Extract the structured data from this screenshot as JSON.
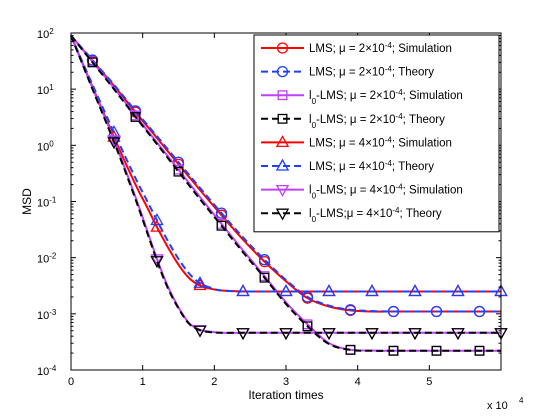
{
  "chart_data": {
    "type": "line",
    "title": "",
    "xlabel": "Iteration times",
    "ylabel": "MSD",
    "x_multiplier_label": "x 10",
    "x_multiplier_exp": "4",
    "xlim": [
      0,
      60000
    ],
    "ylim": [
      0.0001,
      100
    ],
    "yscale": "log",
    "grid": false,
    "legend_position": "top-right",
    "x_ticks": [
      {
        "value": 0,
        "label": "0"
      },
      {
        "value": 10000,
        "label": "1"
      },
      {
        "value": 20000,
        "label": "2"
      },
      {
        "value": 30000,
        "label": "3"
      },
      {
        "value": 40000,
        "label": "4"
      },
      {
        "value": 50000,
        "label": "5"
      }
    ],
    "y_ticks": [
      {
        "value": 0.0001,
        "base": "10",
        "exp": "-4"
      },
      {
        "value": 0.001,
        "base": "10",
        "exp": "-3"
      },
      {
        "value": 0.01,
        "base": "10",
        "exp": "-2"
      },
      {
        "value": 0.1,
        "base": "10",
        "exp": "-1"
      },
      {
        "value": 1,
        "base": "10",
        "exp": "0"
      },
      {
        "value": 10,
        "base": "10",
        "exp": "1"
      },
      {
        "value": 100,
        "base": "10",
        "exp": "2"
      }
    ],
    "series": [
      {
        "name": "LMS; μ = 2×10⁻⁴; Simulation",
        "legend_parts": [
          "LMS; ",
          "μ",
          " = 2×10",
          "-4",
          "; Simulation"
        ],
        "color": "#ff0000",
        "dash": "solid",
        "marker": "circle",
        "x": [
          0,
          3000,
          6000,
          9000,
          12000,
          15000,
          18000,
          21000,
          24000,
          27000,
          30000,
          33000,
          36000,
          39000,
          42000,
          45000,
          48000,
          51000,
          54000,
          57000,
          60000
        ],
        "y": [
          90,
          32,
          11.5,
          3.9,
          1.35,
          0.46,
          0.16,
          0.057,
          0.021,
          0.0085,
          0.0038,
          0.0019,
          0.00135,
          0.00115,
          0.0011,
          0.0011,
          0.0011,
          0.0011,
          0.0011,
          0.0011,
          0.0011
        ],
        "marker_x": [
          3000,
          9000,
          15000,
          21000,
          27000,
          33000,
          39000,
          45000,
          51000,
          57000
        ]
      },
      {
        "name": "LMS; μ = 2×10⁻⁴; Theory",
        "legend_parts": [
          "LMS; ",
          "μ",
          " = 2×10",
          "-4",
          "; Theory"
        ],
        "color": "#1f3fff",
        "dash": "dashed",
        "marker": "circle",
        "x": [
          0,
          3000,
          6000,
          9000,
          12000,
          15000,
          18000,
          21000,
          24000,
          27000,
          30000,
          33000,
          36000,
          39000,
          42000,
          45000,
          48000,
          51000,
          54000,
          57000,
          60000
        ],
        "y": [
          90,
          33,
          12,
          4.1,
          1.45,
          0.5,
          0.175,
          0.062,
          0.023,
          0.0092,
          0.004,
          0.002,
          0.0014,
          0.00118,
          0.00112,
          0.0011,
          0.0011,
          0.0011,
          0.0011,
          0.0011,
          0.0011
        ],
        "marker_x": [
          3000,
          9000,
          15000,
          21000,
          27000,
          33000,
          39000,
          45000,
          51000,
          57000
        ]
      },
      {
        "name": "l₀-LMS; μ = 2×10⁻⁴; Simulation",
        "legend_parts": [
          "l",
          "0",
          "-LMS; ",
          "μ",
          " = 2×10",
          "-4",
          "; Simulation"
        ],
        "color": "#c040ff",
        "dash": "solid",
        "marker": "square",
        "x": [
          0,
          3000,
          6000,
          9000,
          12000,
          15000,
          18000,
          21000,
          24000,
          27000,
          30000,
          33000,
          36000,
          39000,
          42000,
          45000,
          48000,
          51000,
          54000,
          57000,
          60000
        ],
        "y": [
          90,
          31,
          10.5,
          3.4,
          1.12,
          0.37,
          0.12,
          0.04,
          0.0135,
          0.0047,
          0.0016,
          0.00065,
          0.0003,
          0.00023,
          0.000222,
          0.00022,
          0.00022,
          0.00022,
          0.00022,
          0.00022,
          0.00022
        ],
        "marker_x": [
          3000,
          9000,
          15000,
          21000,
          27000,
          33000,
          39000,
          45000,
          51000,
          57000
        ]
      },
      {
        "name": "l₀-LMS; μ = 2×10⁻⁴; Theory",
        "legend_parts": [
          "l",
          "0",
          "-LMS; ",
          "μ",
          " = 2×10",
          "-4",
          "; Theory"
        ],
        "color": "#000000",
        "dash": "dashed",
        "marker": "square",
        "x": [
          0,
          3000,
          6000,
          9000,
          12000,
          15000,
          18000,
          21000,
          24000,
          27000,
          30000,
          33000,
          36000,
          39000,
          42000,
          45000,
          48000,
          51000,
          54000,
          57000,
          60000
        ],
        "y": [
          90,
          30,
          10,
          3.2,
          1.05,
          0.34,
          0.11,
          0.037,
          0.0125,
          0.0044,
          0.0015,
          0.0006,
          0.00029,
          0.000228,
          0.00022,
          0.00022,
          0.00022,
          0.00022,
          0.00022,
          0.00022,
          0.00022
        ],
        "marker_x": [
          3000,
          9000,
          15000,
          21000,
          27000,
          33000,
          39000,
          45000,
          51000,
          57000
        ]
      },
      {
        "name": "LMS; μ = 4×10⁻⁴; Simulation",
        "legend_parts": [
          "LMS; ",
          "μ",
          " = 4×10",
          "-4",
          "; Simulation"
        ],
        "color": "#ff0000",
        "dash": "solid",
        "marker": "triangle-up",
        "x": [
          0,
          3000,
          6000,
          9000,
          10500,
          12000,
          13500,
          15000,
          16500,
          18000,
          19500,
          21000,
          24000,
          27000,
          30000,
          36000,
          42000,
          48000,
          54000,
          60000
        ],
        "y": [
          90,
          11,
          1.4,
          0.2,
          0.085,
          0.035,
          0.0155,
          0.0075,
          0.0043,
          0.0032,
          0.0028,
          0.0026,
          0.0025,
          0.0025,
          0.0025,
          0.0025,
          0.0025,
          0.0025,
          0.0025,
          0.0025
        ],
        "marker_x": [
          6000,
          12000,
          18000,
          24000,
          30000,
          36000,
          42000,
          48000,
          54000,
          60000
        ]
      },
      {
        "name": "LMS; μ = 4×10⁻⁴; Theory",
        "legend_parts": [
          "LMS; ",
          "μ",
          " = 4×10",
          "-4",
          "; Theory"
        ],
        "color": "#1f3fff",
        "dash": "dashed",
        "marker": "triangle-up",
        "x": [
          0,
          3000,
          6000,
          9000,
          10500,
          12000,
          13500,
          15000,
          16500,
          18000,
          19500,
          21000,
          24000,
          27000,
          30000,
          36000,
          42000,
          48000,
          54000,
          60000
        ],
        "y": [
          90,
          12,
          1.7,
          0.26,
          0.11,
          0.046,
          0.02,
          0.0095,
          0.0052,
          0.0035,
          0.0029,
          0.0026,
          0.0025,
          0.0025,
          0.0025,
          0.0025,
          0.0025,
          0.0025,
          0.0025,
          0.0025
        ],
        "marker_x": [
          6000,
          12000,
          18000,
          24000,
          30000,
          36000,
          42000,
          48000,
          54000,
          60000
        ]
      },
      {
        "name": "l₀-LMS; μ = 4×10⁻⁴; Simulation",
        "legend_parts": [
          "l",
          "0",
          "-LMS; ",
          "μ",
          " = 4×10",
          "-4",
          "; Simulation"
        ],
        "color": "#c040ff",
        "dash": "solid",
        "marker": "triangle-down",
        "x": [
          0,
          3000,
          6000,
          9000,
          12000,
          13500,
          15000,
          16500,
          18000,
          19500,
          21000,
          24000,
          27000,
          30000,
          36000,
          42000,
          48000,
          54000,
          60000
        ],
        "y": [
          90,
          10.5,
          1.25,
          0.12,
          0.0095,
          0.0031,
          0.0013,
          0.00068,
          0.00052,
          0.00048,
          0.00046,
          0.00046,
          0.00046,
          0.00046,
          0.00046,
          0.00046,
          0.00046,
          0.00046,
          0.00046
        ],
        "marker_x": [
          6000,
          12000,
          18000,
          24000,
          30000,
          36000,
          42000,
          48000,
          54000,
          60000
        ]
      },
      {
        "name": "l₀-LMS; μ = 4×10⁻⁴; Theory",
        "legend_parts": [
          "l",
          "0",
          "-LMS;",
          "μ",
          " = 4×10",
          "-4",
          "; Theory"
        ],
        "color": "#000000",
        "dash": "dashed",
        "marker": "triangle-down",
        "x": [
          0,
          3000,
          6000,
          9000,
          12000,
          13500,
          15000,
          16500,
          18000,
          19500,
          21000,
          24000,
          27000,
          30000,
          36000,
          42000,
          48000,
          54000,
          60000
        ],
        "y": [
          90,
          10,
          1.15,
          0.11,
          0.0088,
          0.0029,
          0.00125,
          0.00066,
          0.00051,
          0.00047,
          0.00046,
          0.00046,
          0.00046,
          0.00046,
          0.00046,
          0.00046,
          0.00046,
          0.00046,
          0.00046
        ],
        "marker_x": [
          6000,
          12000,
          18000,
          24000,
          30000,
          36000,
          42000,
          48000,
          54000,
          60000
        ]
      }
    ]
  }
}
